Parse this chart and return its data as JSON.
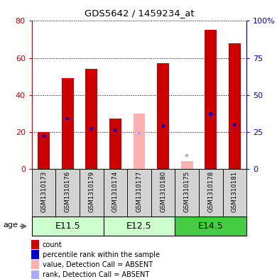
{
  "title": "GDS5642 / 1459234_at",
  "samples": [
    "GSM1310173",
    "GSM1310176",
    "GSM1310179",
    "GSM1310174",
    "GSM1310177",
    "GSM1310180",
    "GSM1310175",
    "GSM1310178",
    "GSM1310181"
  ],
  "age_groups": [
    {
      "label": "E11.5",
      "start": 0,
      "end": 3,
      "color": "#CCFFCC"
    },
    {
      "label": "E12.5",
      "start": 3,
      "end": 6,
      "color": "#CCFFCC"
    },
    {
      "label": "E14.5",
      "start": 6,
      "end": 9,
      "color": "#44CC44"
    }
  ],
  "red_bars": [
    20,
    49,
    54,
    27,
    0,
    57,
    0,
    75,
    68
  ],
  "blue_squares": [
    22,
    34,
    27,
    26,
    0,
    29,
    0,
    37,
    30
  ],
  "pink_bars": [
    0,
    0,
    0,
    0,
    30,
    0,
    4,
    0,
    0
  ],
  "lightblue_squares": [
    0,
    0,
    0,
    0,
    24,
    0,
    9,
    0,
    0
  ],
  "ylim_left": [
    0,
    80
  ],
  "ylim_right": [
    0,
    100
  ],
  "yticks_left": [
    0,
    20,
    40,
    60,
    80
  ],
  "yticks_right": [
    0,
    25,
    50,
    75,
    100
  ],
  "ytick_labels_right": [
    "0",
    "25",
    "50",
    "75",
    "100%"
  ],
  "red_color": "#CC0000",
  "blue_color": "#0000CC",
  "pink_color": "#FFB0B0",
  "lightblue_color": "#AAAAFF",
  "sample_bg": "#D3D3D3",
  "plot_bg": "#FFFFFF",
  "grid_linestyle": "dotted",
  "bar_width": 0.5,
  "square_size": 0.12,
  "legend_items": [
    {
      "color": "#CC0000",
      "label": "count"
    },
    {
      "color": "#0000CC",
      "label": "percentile rank within the sample"
    },
    {
      "color": "#FFB0B0",
      "label": "value, Detection Call = ABSENT"
    },
    {
      "color": "#AAAAFF",
      "label": "rank, Detection Call = ABSENT"
    }
  ]
}
